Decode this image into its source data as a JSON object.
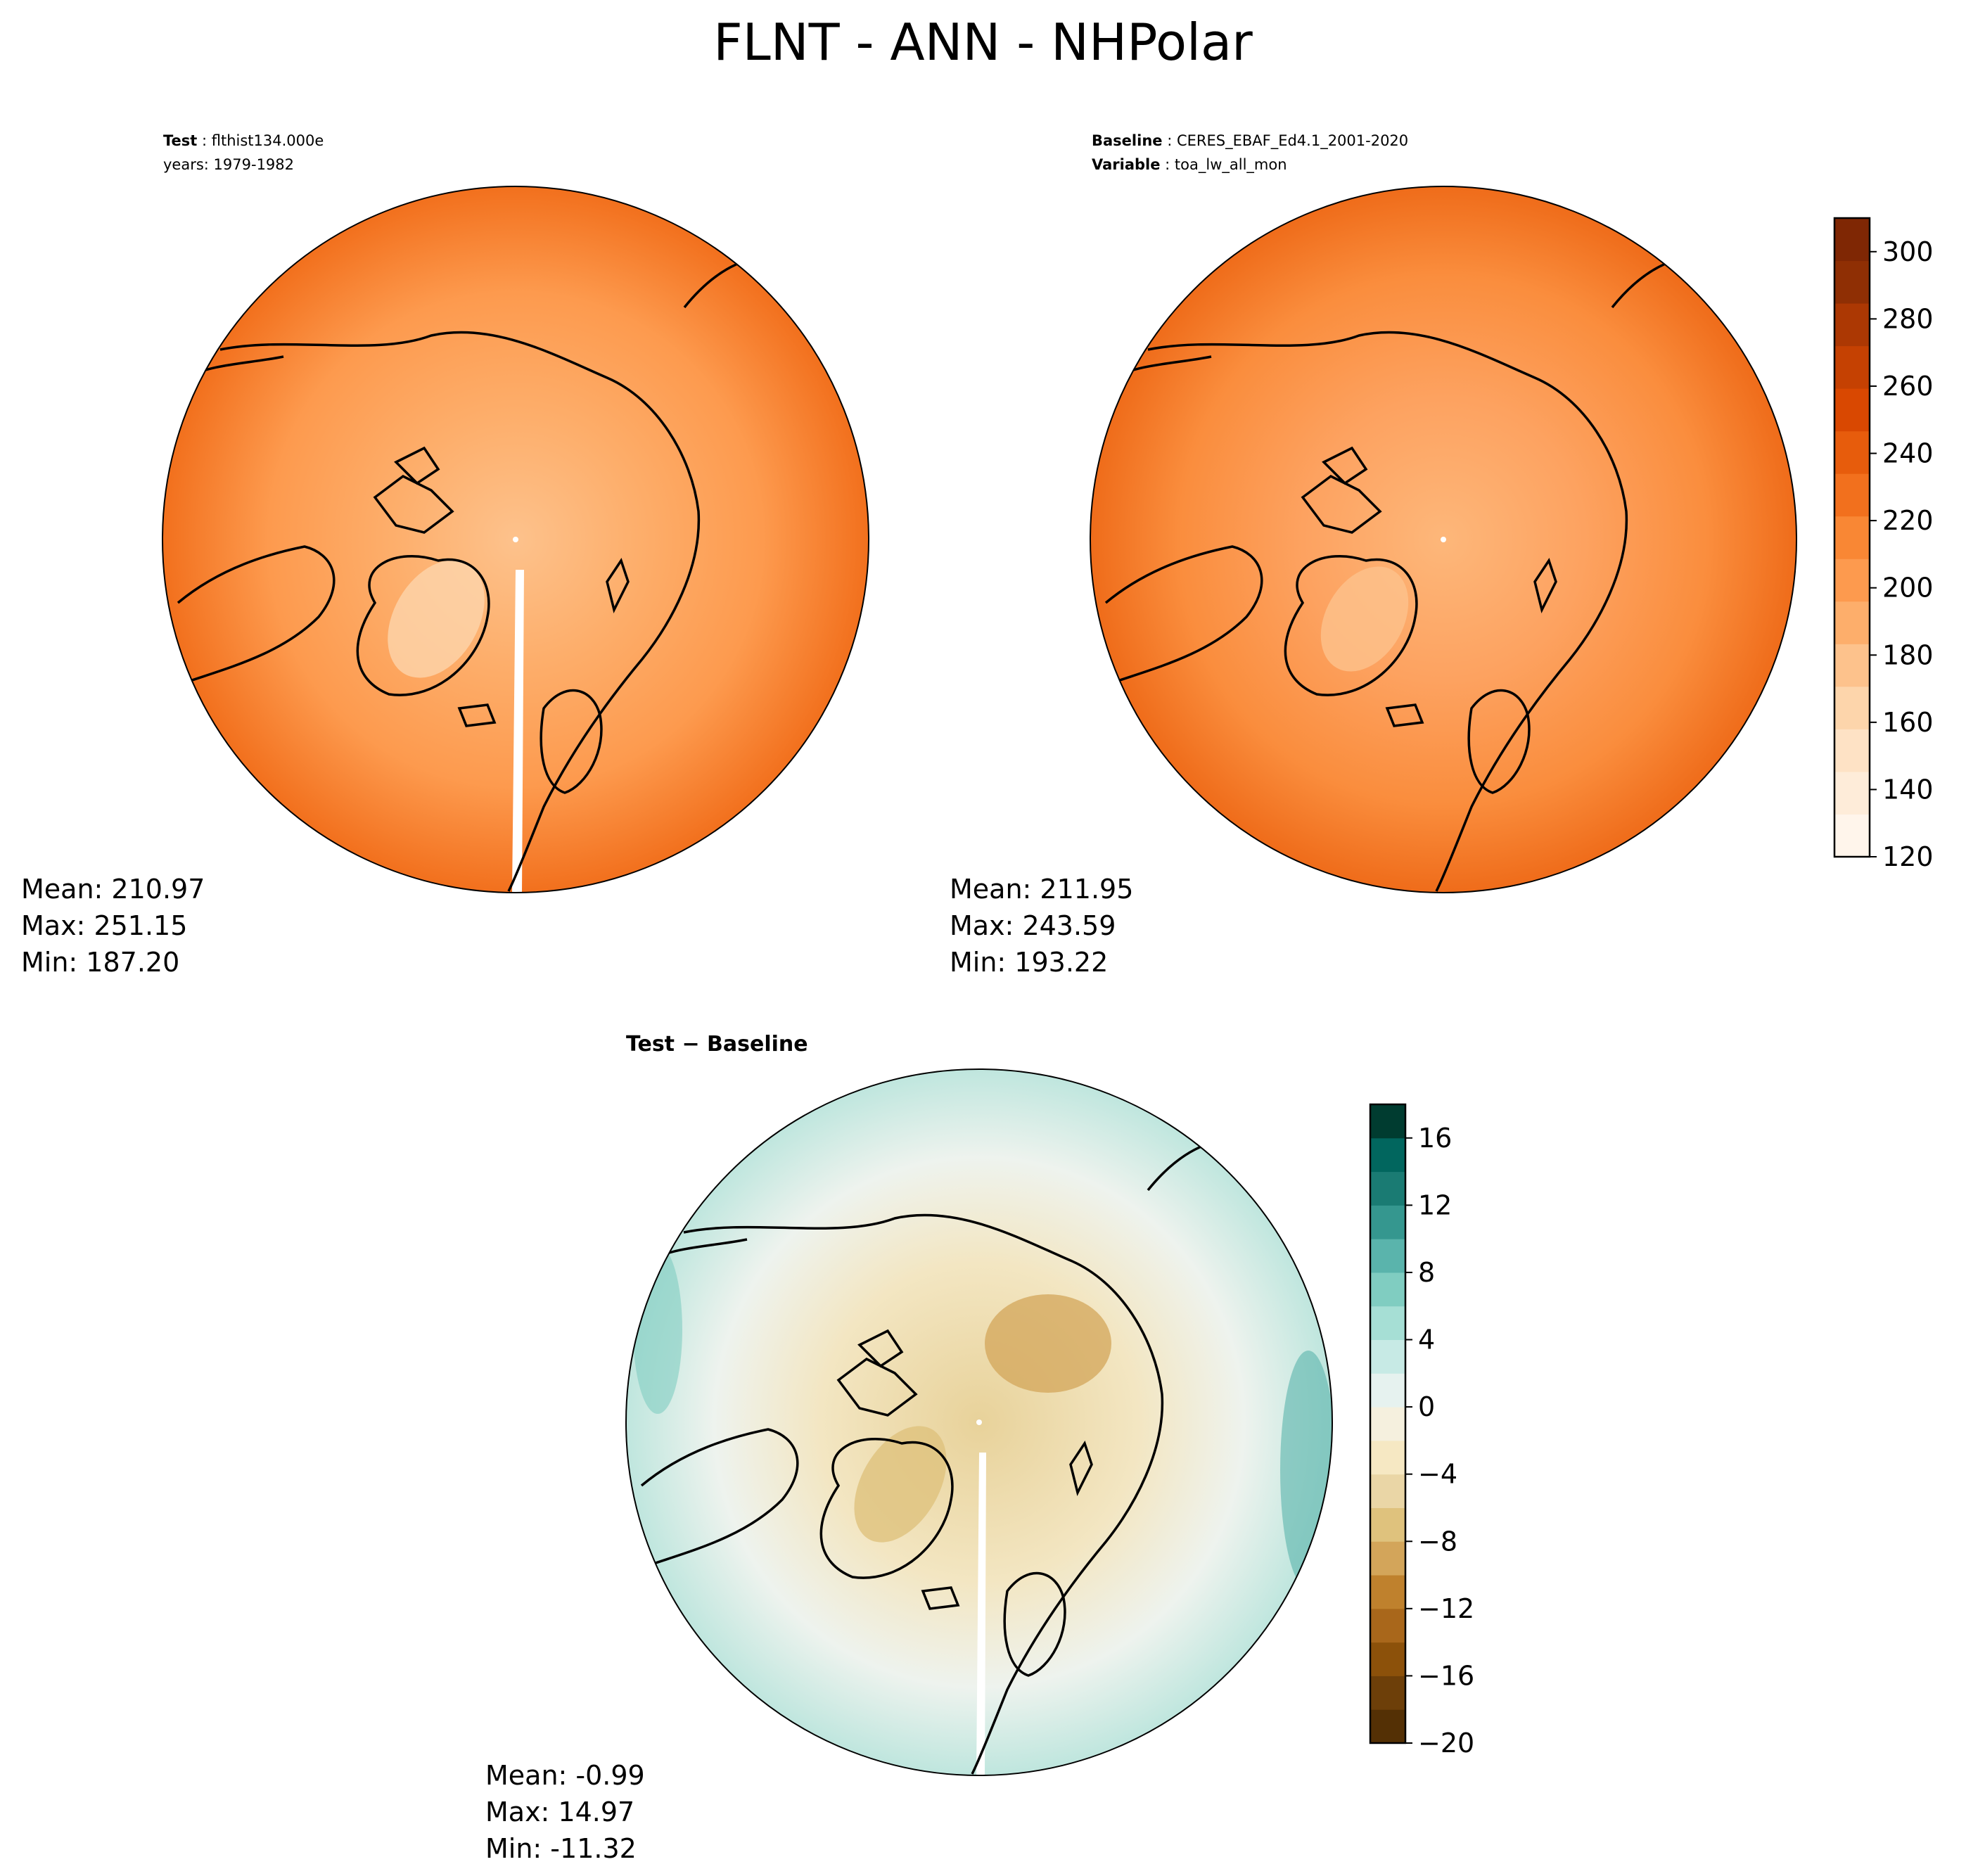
{
  "figure": {
    "title": "FLNT - ANN - NHPolar"
  },
  "panels": {
    "test": {
      "label_bold": "Test",
      "label_value": "flthist134.000e",
      "years_line": "years: 1979-1982",
      "stats": {
        "mean": "Mean: 210.97",
        "max": "Max: 251.15",
        "min": "Min: 187.20"
      }
    },
    "baseline": {
      "label_bold": "Baseline",
      "label_value": "CERES_EBAF_Ed4.1_2001-2020",
      "variable_bold": "Variable",
      "variable_value": "toa_lw_all_mon",
      "stats": {
        "mean": "Mean: 211.95",
        "max": "Max: 243.59",
        "min": "Min: 193.22"
      }
    },
    "difference": {
      "title": "Test − Baseline",
      "stats": {
        "mean": "Mean: -0.99",
        "max": "Max: 14.97",
        "min": "Min: -11.32"
      }
    }
  },
  "colorbars": {
    "main": {
      "ticks": [
        "120",
        "140",
        "160",
        "180",
        "200",
        "220",
        "240",
        "260",
        "280",
        "300"
      ],
      "range": [
        120,
        310
      ],
      "colors": [
        "#fff5eb",
        "#feecd9",
        "#fee2c5",
        "#fdd5ab",
        "#fdc28c",
        "#fdae6b",
        "#fd9a4e",
        "#f98734",
        "#f2701d",
        "#e75c0c",
        "#d94801",
        "#c54102",
        "#ac3803",
        "#8f2f04",
        "#7f2704"
      ]
    },
    "diff": {
      "ticks": [
        "−20",
        "−16",
        "−12",
        "−8",
        "−4",
        "0",
        "4",
        "8",
        "12",
        "16"
      ],
      "range": [
        -20,
        18
      ],
      "colors": [
        "#543005",
        "#6d3f09",
        "#8c510a",
        "#a9671b",
        "#bf812d",
        "#d3a55a",
        "#dfc27d",
        "#ead6a6",
        "#f6e8c3",
        "#f5f0de",
        "#e6f2ef",
        "#c7eae5",
        "#a6dfd5",
        "#80cdc1",
        "#5ab4ac",
        "#35978f",
        "#1a7b73",
        "#01665e",
        "#003c30"
      ]
    }
  }
}
